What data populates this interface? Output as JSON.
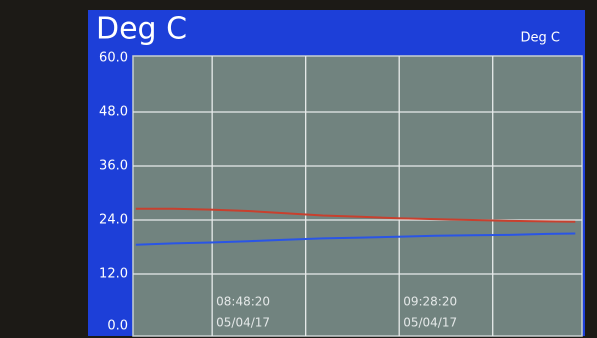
{
  "chart_data": {
    "type": "line",
    "title": "Deg C",
    "unit_label": "Deg C",
    "x": [
      "08:32:00",
      "08:40:00",
      "08:48:00",
      "08:56:00",
      "09:04:00",
      "09:12:00",
      "09:20:00",
      "09:28:00",
      "09:36:00",
      "09:44:00",
      "09:52:00",
      "10:00:00",
      "10:06:00"
    ],
    "xlim": [
      "08:31:50",
      "10:07:00"
    ],
    "xticks": [
      {
        "value": "08:48:20",
        "label": "08:48:20",
        "date": "05/04/17"
      },
      {
        "value": "09:08:20",
        "label": null
      },
      {
        "value": "09:28:20",
        "label": "09:28:20",
        "date": "05/04/17"
      },
      {
        "value": "09:48:20",
        "label": null
      }
    ],
    "ylim": [
      0,
      60
    ],
    "yticks": [
      {
        "value": 0,
        "label": "0.0"
      },
      {
        "value": 12,
        "label": "12.0"
      },
      {
        "value": 24,
        "label": "24.0"
      },
      {
        "value": 36,
        "label": "36.0"
      },
      {
        "value": 48,
        "label": "48.0"
      },
      {
        "value": 60,
        "label": "60.0"
      }
    ],
    "grid": true,
    "series": [
      {
        "color": "#c8402e",
        "values": [
          26.5,
          26.5,
          26.3,
          26.0,
          25.5,
          25.0,
          24.7,
          24.4,
          24.2,
          24.0,
          23.8,
          23.7,
          23.6
        ]
      },
      {
        "color": "#2a55e6",
        "values": [
          18.5,
          18.8,
          19.0,
          19.3,
          19.6,
          19.9,
          20.1,
          20.3,
          20.5,
          20.6,
          20.7,
          20.9,
          21.0
        ]
      }
    ]
  }
}
